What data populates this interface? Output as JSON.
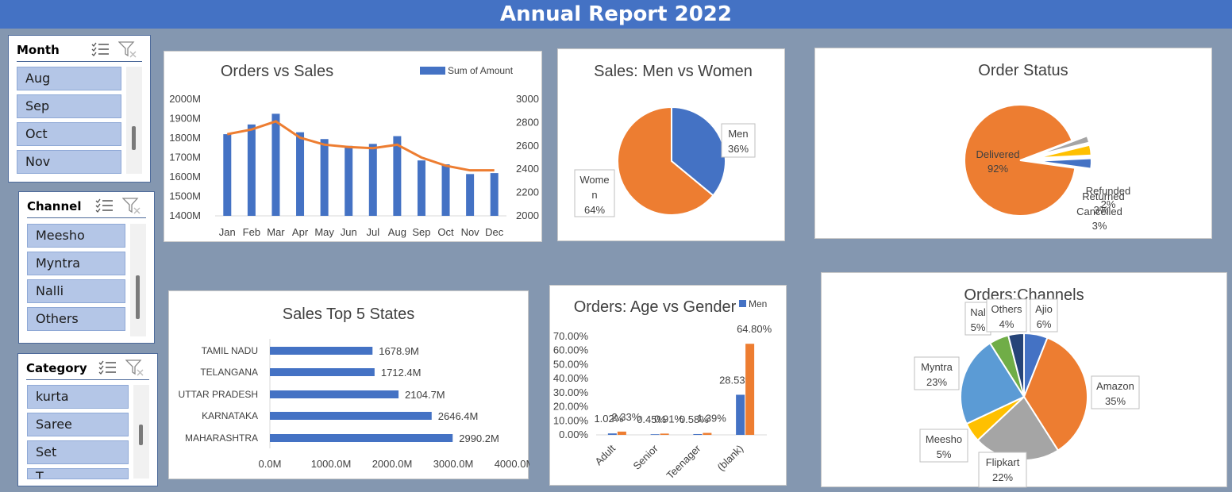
{
  "title": "Annual Report 2022",
  "colors": {
    "title_bar": "#4472C4",
    "background": "#8497B0",
    "bar": "#4472C4",
    "line": "#ED7D31",
    "slicer_item": "#B4C6E7"
  },
  "slicers": [
    {
      "title": "Month",
      "items": [
        "Aug",
        "Sep",
        "Oct",
        "Nov"
      ],
      "icons": [
        "multi-select-icon",
        "clear-filter-icon"
      ]
    },
    {
      "title": "Channel",
      "items": [
        "Meesho",
        "Myntra",
        "Nalli",
        "Others"
      ],
      "icons": [
        "multi-select-icon",
        "clear-filter-icon"
      ]
    },
    {
      "title": "Category",
      "items": [
        "kurta",
        "Saree",
        "Set",
        "T"
      ],
      "icons": [
        "multi-select-icon",
        "clear-filter-icon"
      ]
    }
  ],
  "chart_data": [
    {
      "type": "bar",
      "title": "Orders vs Sales",
      "legend": {
        "entry": "Sum of Amount",
        "placement": "top-right"
      },
      "categories": [
        "Jan",
        "Feb",
        "Mar",
        "Apr",
        "May",
        "Jun",
        "Jul",
        "Aug",
        "Sep",
        "Oct",
        "Nov",
        "Dec"
      ],
      "series": [
        {
          "name": "Sum of Amount",
          "kind": "bar",
          "axis": "left",
          "values": [
            1820,
            1870,
            1925,
            1830,
            1795,
            1760,
            1770,
            1810,
            1685,
            1665,
            1615,
            1620
          ]
        },
        {
          "kind": "line",
          "axis": "right",
          "values": [
            2700,
            2740,
            2810,
            2670,
            2610,
            2590,
            2580,
            2610,
            2500,
            2430,
            2390,
            2390
          ]
        }
      ],
      "ylim": [
        1400,
        2000
      ],
      "y_ticks": [
        "1400M",
        "1500M",
        "1600M",
        "1700M",
        "1800M",
        "1900M",
        "2000M"
      ],
      "y2lim": [
        2000,
        3000
      ],
      "y2_ticks": [
        "2000",
        "2200",
        "2400",
        "2600",
        "2800",
        "3000"
      ],
      "grid": false
    },
    {
      "type": "pie",
      "title": "Sales: Men vs Women",
      "slices": [
        {
          "label": "Men",
          "value": 36,
          "text": "36%",
          "color": "#4472C4"
        },
        {
          "label": "Wome\nn",
          "value": 64,
          "text": "64%",
          "color": "#ED7D31"
        }
      ]
    },
    {
      "type": "pie",
      "title": "Order Status",
      "slices": [
        {
          "label": "Delivered",
          "value": 92,
          "text": "92%",
          "color": "#ED7D31"
        },
        {
          "label": "Refunded",
          "value": 2,
          "text": "2%",
          "color": "#A5A5A5"
        },
        {
          "label": "Returned",
          "value": 3,
          "text": "3%",
          "color": "#FFC000"
        },
        {
          "label": "Cancelled",
          "value": 3,
          "text": "3%",
          "color": "#4472C4"
        }
      ]
    },
    {
      "type": "bar",
      "orientation": "horizontal",
      "title": "Sales Top 5 States",
      "categories": [
        "TAMIL NADU",
        "TELANGANA",
        "UTTAR PRADESH",
        "KARNATAKA",
        "MAHARASHTRA"
      ],
      "values": [
        1678.9,
        1712.4,
        2104.7,
        2646.4,
        2990.2
      ],
      "value_labels": [
        "1678.9M",
        "1712.4M",
        "2104.7M",
        "2646.4M",
        "2990.2M"
      ],
      "xlim": [
        0,
        4000
      ],
      "x_ticks": [
        "0.0M",
        "1000.0M",
        "2000.0M",
        "3000.0M",
        "4000.0M"
      ],
      "grid": false
    },
    {
      "type": "bar",
      "title": "Orders: Age vs Gender",
      "categories": [
        "Adult",
        "Senior",
        "Teenager",
        "(blank)"
      ],
      "series": [
        {
          "name": "Men",
          "color": "#4472C4",
          "values": [
            1.02,
            0.45,
            0.58,
            28.53
          ],
          "labels": [
            "1.02%",
            "0.45%",
            "0.58%",
            "28.53%"
          ]
        },
        {
          "color": "#ED7D31",
          "values": [
            2.33,
            0.91,
            1.39,
            64.8
          ],
          "labels": [
            "2.33%",
            "0.91%",
            "1.39%",
            "64.80%"
          ]
        }
      ],
      "ylim": [
        0,
        70
      ],
      "y_ticks": [
        "0.00%",
        "10.00%",
        "20.00%",
        "30.00%",
        "40.00%",
        "50.00%",
        "60.00%",
        "70.00%"
      ],
      "legend": {
        "placement": "top-right"
      }
    },
    {
      "type": "pie",
      "title": "Orders:Channels",
      "slices": [
        {
          "label": "Ajio",
          "value": 6,
          "text": "6%",
          "color": "#4472C4"
        },
        {
          "label": "Amazon",
          "value": 35,
          "text": "35%",
          "color": "#ED7D31"
        },
        {
          "label": "Flipkart",
          "value": 22,
          "text": "22%",
          "color": "#A5A5A5"
        },
        {
          "label": "Meesho",
          "value": 5,
          "text": "5%",
          "color": "#FFC000"
        },
        {
          "label": "Myntra",
          "value": 23,
          "text": "23%",
          "color": "#5B9BD5"
        },
        {
          "label": "Nal",
          "value": 5,
          "text": "5%",
          "color": "#70AD47"
        },
        {
          "label": "Others",
          "value": 4,
          "text": "4%",
          "color": "#264478"
        }
      ]
    }
  ]
}
